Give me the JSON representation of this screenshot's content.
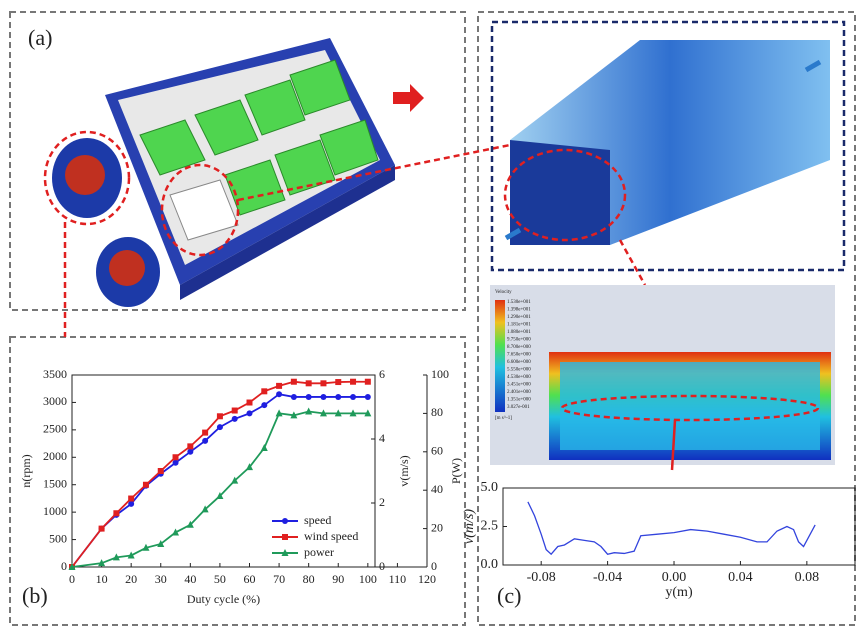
{
  "panel_labels": [
    "(a)",
    "(b)",
    "(c)"
  ],
  "contour_legend": {
    "title": "Velocity",
    "labels": [
      "1.530e+001",
      "1.398e+001",
      "1.290e+001",
      "1.181e+001",
      "1.080e+001",
      "9.750e+000",
      "8.700e+000",
      "7.650e+000",
      "6.600e+000",
      "5.550e+000",
      "4.530e+000",
      "3.451e+000",
      "2.401e+000",
      "1.351e+000",
      "3.027e-001"
    ],
    "unit": "[m s^-1]"
  },
  "chart_data": [
    {
      "type": "line",
      "xlabel": "Duty cycle  (%)",
      "ylabel": "n(rpm)",
      "y2label": "v(m/s)",
      "y3label": "P(W)",
      "xlim": [
        0,
        120
      ],
      "xticks": [
        0,
        10,
        20,
        30,
        40,
        50,
        60,
        70,
        80,
        90,
        100,
        110,
        120
      ],
      "ylim": [
        0,
        3500
      ],
      "yticks": [
        0,
        500,
        1000,
        1500,
        2000,
        2500,
        3000,
        3500
      ],
      "y2lim": [
        0,
        6
      ],
      "y2ticks": [
        0,
        2,
        4,
        6
      ],
      "y3lim": [
        0,
        100
      ],
      "y3ticks": [
        0,
        20,
        40,
        60,
        80,
        100
      ],
      "x": [
        0,
        10,
        15,
        20,
        25,
        30,
        35,
        40,
        45,
        50,
        55,
        60,
        65,
        70,
        75,
        80,
        85,
        90,
        95,
        100
      ],
      "legend": "lower right",
      "series": [
        {
          "name": "speed",
          "color": "#1f1fe0",
          "marker": "circle",
          "values": [
            0,
            700,
            950,
            1150,
            1480,
            1700,
            1900,
            2100,
            2300,
            2550,
            2700,
            2800,
            2950,
            3150,
            3100,
            3100,
            3100,
            3100,
            3100,
            3100
          ]
        },
        {
          "name": "wind speed",
          "color": "#e02020",
          "marker": "square",
          "axis": "y2",
          "values": [
            0,
            1.2,
            1.68,
            2.14,
            2.57,
            3.0,
            3.43,
            3.77,
            4.2,
            4.71,
            4.89,
            5.14,
            5.49,
            5.66,
            5.79,
            5.74,
            5.74,
            5.78,
            5.79,
            5.79
          ]
        },
        {
          "name": "power",
          "color": "#1f9a5a",
          "marker": "triangle",
          "axis": "y3",
          "values": [
            0,
            2,
            5,
            6,
            10,
            12,
            18,
            22,
            30,
            37,
            45,
            52,
            62,
            80,
            79,
            81,
            80,
            80,
            80,
            80
          ]
        }
      ]
    },
    {
      "type": "line",
      "xlabel": "y(m)",
      "ylabel": "v(m/s)",
      "xlim": [
        -0.103,
        0.109
      ],
      "xticks": [
        -0.08,
        -0.04,
        {
          "value": 0,
          "label": "0.00"
        },
        0.04,
        0.08
      ],
      "ylim": [
        0,
        5
      ],
      "yticks": [
        {
          "value": 0,
          "label": "0.0"
        },
        {
          "value": 2.5,
          "label": "2.5"
        },
        {
          "value": 5,
          "label": "5.0"
        }
      ],
      "x": [
        -0.088,
        -0.084,
        -0.08,
        -0.077,
        -0.074,
        -0.07,
        -0.066,
        -0.06,
        -0.054,
        -0.048,
        -0.044,
        -0.04,
        -0.036,
        -0.03,
        -0.024,
        -0.02,
        -0.01,
        0,
        0.01,
        0.02,
        0.03,
        0.04,
        0.05,
        0.056,
        0.062,
        0.068,
        0.072,
        0.075,
        0.078,
        0.081,
        0.085
      ],
      "series": [
        {
          "color": "#3344dd",
          "values": [
            4.1,
            3.2,
            2.0,
            1.0,
            0.7,
            1.2,
            1.3,
            1.7,
            1.6,
            1.5,
            1.2,
            0.7,
            0.8,
            0.75,
            0.9,
            1.9,
            2.0,
            2.1,
            2.3,
            2.2,
            2.0,
            1.8,
            1.5,
            1.5,
            2.2,
            2.5,
            2.3,
            1.5,
            1.2,
            1.8,
            2.6
          ]
        }
      ]
    }
  ]
}
